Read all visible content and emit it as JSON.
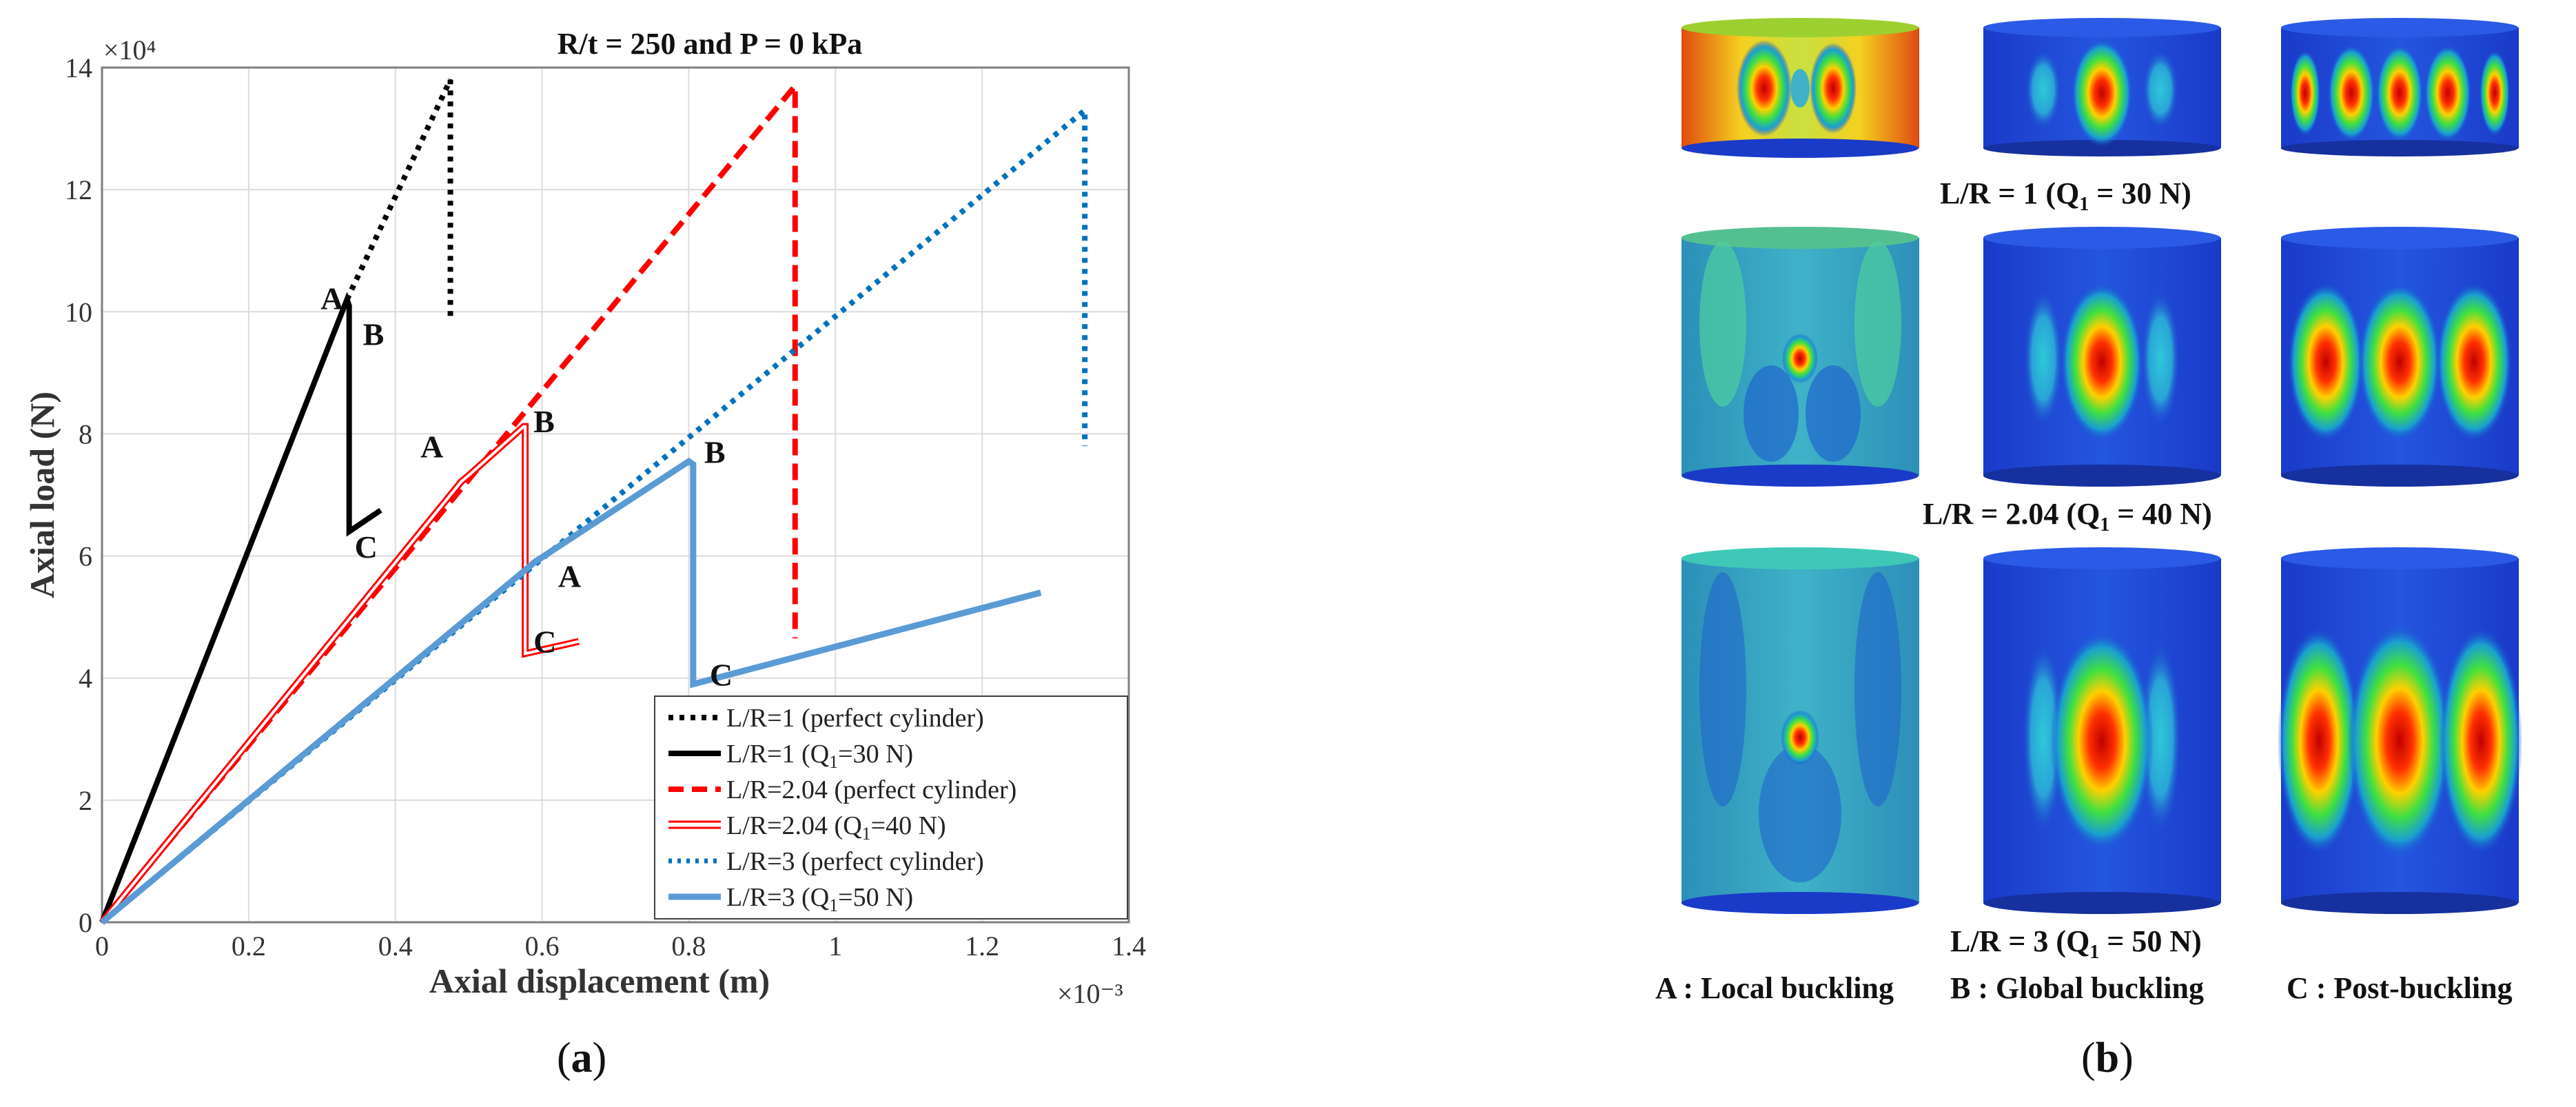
{
  "chart_data": {
    "type": "line",
    "title": "R/t = 250 and P = 0 kPa",
    "xlabel": "Axial displacement (m)",
    "ylabel": "Axial load (N)",
    "x_multiplier": "×10⁻³",
    "y_multiplier": "×10⁴",
    "xlim": [
      0,
      1.4
    ],
    "ylim": [
      0,
      14
    ],
    "xticks": [
      0,
      0.2,
      0.4,
      0.6,
      0.8,
      1,
      1.2,
      1.4
    ],
    "xtick_labels": [
      "0",
      "0.2",
      "0.4",
      "0.6",
      "0.8",
      "1",
      "1.2",
      "1.4"
    ],
    "yticks": [
      0,
      2,
      4,
      6,
      8,
      10,
      12,
      14
    ],
    "ytick_labels": [
      "0",
      "2",
      "4",
      "6",
      "8",
      "10",
      "12",
      "14"
    ],
    "grid": true,
    "legend_position": "bottom-right",
    "series": [
      {
        "name": "L/R=1 (perfect cylinder)",
        "legend_main": "L/R=1 (perfect cylinder)",
        "color": "#000000",
        "style": "dotted",
        "x": [
          0.334,
          0.475,
          0.475
        ],
        "y": [
          10.2,
          13.8,
          9.9
        ]
      },
      {
        "name": "L/R=1 (Q1=30 N)",
        "legend_main": "L/R=1 (Q",
        "legend_sub": "1",
        "legend_tail": "=30 N)",
        "color": "#000000",
        "style": "solid",
        "x": [
          0,
          0.334,
          0.337,
          0.337,
          0.38
        ],
        "y": [
          0,
          10.2,
          10.1,
          6.4,
          6.75
        ]
      },
      {
        "name": "L/R=2.04 (perfect cylinder)",
        "legend_main": "L/R=2.04 (perfect cylinder)",
        "color": "#ff0000",
        "style": "dashed",
        "x": [
          0,
          0.945,
          0.945
        ],
        "y": [
          0,
          13.7,
          4.65
        ]
      },
      {
        "name": "L/R=2.04 (Q1=40 N)",
        "legend_main": "L/R=2.04 (Q",
        "legend_sub": "1",
        "legend_tail": "=40 N)",
        "color": "#ff0000",
        "style": "double",
        "x": [
          0,
          0.49,
          0.5,
          0.575,
          0.577,
          0.577,
          0.65
        ],
        "y": [
          0,
          7.22,
          7.32,
          8.12,
          8.12,
          4.4,
          4.6
        ]
      },
      {
        "name": "L/R=3 (perfect cylinder)",
        "legend_main": "L/R=3 (perfect cylinder)",
        "color": "#0072bd",
        "style": "dotted",
        "x": [
          0,
          1.34,
          1.34
        ],
        "y": [
          0,
          13.3,
          7.8
        ]
      },
      {
        "name": "L/R=3 (Q1=50 N)",
        "legend_main": "L/R=3 (Q",
        "legend_sub": "1",
        "legend_tail": "=50 N)",
        "color": "#5b9bd5",
        "style": "thick",
        "x": [
          0,
          0.59,
          0.8,
          0.806,
          0.806,
          1.28
        ],
        "y": [
          0,
          5.9,
          7.55,
          7.5,
          3.9,
          5.4
        ]
      }
    ],
    "annotations": [
      {
        "text": "A",
        "x": 0.33,
        "y": 10.2,
        "dx": -16,
        "dy": 0
      },
      {
        "text": "B",
        "x": 0.337,
        "y": 10.2,
        "dx": 38,
        "dy": 52
      },
      {
        "text": "C",
        "x": 0.337,
        "y": 6.4,
        "dx": 26,
        "dy": 24
      },
      {
        "text": "A",
        "x": 0.5,
        "y": 7.32,
        "dx": -52,
        "dy": -40
      },
      {
        "text": "B",
        "x": 0.577,
        "y": 8.12,
        "dx": 30,
        "dy": -6
      },
      {
        "text": "C",
        "x": 0.577,
        "y": 4.4,
        "dx": 30,
        "dy": -16
      },
      {
        "text": "A",
        "x": 0.59,
        "y": 5.9,
        "dx": 52,
        "dy": 22
      },
      {
        "text": "B",
        "x": 0.806,
        "y": 7.5,
        "dx": 34,
        "dy": -16
      },
      {
        "text": "C",
        "x": 0.806,
        "y": 3.9,
        "dx": 42,
        "dy": -12
      }
    ]
  },
  "figure_b": {
    "captions": {
      "row1_main": "L/R = 1 (Q",
      "row1_sub": "1",
      "row1_tail": " = 30 N)",
      "row2_main": "L/R = 2.04 (Q",
      "row2_sub": "1",
      "row2_tail": " = 40 N)",
      "row3_main": "L/R = 3 (Q",
      "row3_sub": "1",
      "row3_tail": " = 50 N)"
    },
    "legend": {
      "a": "A : Local buckling",
      "b": "B : Global buckling",
      "c": "C : Post-buckling"
    }
  },
  "panel_labels": {
    "a_open": "(",
    "a_letter": "a",
    "a_close": ")",
    "b_open": "(",
    "b_letter": "b",
    "b_close": ")"
  }
}
